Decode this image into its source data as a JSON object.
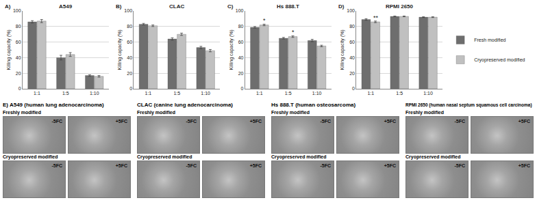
{
  "chart_data": [
    {
      "type": "bar",
      "label": "A)",
      "title": "A549",
      "categories": [
        "1:1",
        "1:5",
        "1:10"
      ],
      "y_label": "Killing capacity (%)",
      "ylim": [
        0,
        100
      ],
      "yticks": [
        0,
        20,
        40,
        60,
        80,
        100
      ],
      "grid": true,
      "series": [
        {
          "name": "Fresh modified",
          "color": "#6e6e6e",
          "values": [
            86,
            40,
            17
          ],
          "errors": [
            1.5,
            3,
            1
          ]
        },
        {
          "name": "Cryopreserved modified",
          "color": "#c0c0c0",
          "values": [
            87,
            44,
            16
          ],
          "errors": [
            2,
            2.5,
            1
          ]
        }
      ]
    },
    {
      "type": "bar",
      "label": "B)",
      "title": "CLAC",
      "categories": [
        "1:1",
        "1:5",
        "1:10"
      ],
      "y_label": "Killing capacity (%)",
      "ylim": [
        0,
        100
      ],
      "yticks": [
        0,
        20,
        40,
        60,
        80,
        100
      ],
      "grid": true,
      "series": [
        {
          "name": "Fresh modified",
          "color": "#6e6e6e",
          "values": [
            83,
            64,
            53
          ],
          "errors": [
            1,
            1.5,
            1.5
          ]
        },
        {
          "name": "Cryopreserved modified",
          "color": "#c0c0c0",
          "values": [
            81,
            70,
            49
          ],
          "errors": [
            1,
            1.5,
            1.5
          ]
        }
      ]
    },
    {
      "type": "bar",
      "label": "C)",
      "title": "Hs 888.T",
      "categories": [
        "1:1",
        "1:5",
        "1:10"
      ],
      "y_label": "Killing capacity (%)",
      "ylim": [
        0,
        100
      ],
      "yticks": [
        0,
        20,
        40,
        60,
        80,
        100
      ],
      "grid": true,
      "series": [
        {
          "name": "Fresh modified",
          "color": "#6e6e6e",
          "values": [
            79,
            65,
            62
          ],
          "errors": [
            1,
            1,
            1.5
          ]
        },
        {
          "name": "Cryopreserved modified",
          "color": "#c0c0c0",
          "values": [
            82,
            67,
            55
          ],
          "errors": [
            1,
            1,
            1
          ]
        }
      ],
      "annotations": [
        {
          "category": "1:1",
          "series": "Cryopreserved modified",
          "text": "*"
        },
        {
          "category": "1:5",
          "series": "Cryopreserved modified",
          "text": "*"
        }
      ]
    },
    {
      "type": "bar",
      "label": "D)",
      "title": "RPMI 2650",
      "categories": [
        "1:1",
        "1:5",
        "1:10"
      ],
      "y_label": "Killing capacity (%)",
      "ylim": [
        0,
        100
      ],
      "yticks": [
        0,
        20,
        40,
        60,
        80,
        100
      ],
      "grid": true,
      "legend": "right",
      "series": [
        {
          "name": "Fresh modified",
          "color": "#6e6e6e",
          "values": [
            89,
            93,
            92
          ],
          "errors": [
            1,
            0.5,
            0.5
          ]
        },
        {
          "name": "Cryopreserved modified",
          "color": "#c0c0c0",
          "values": [
            86,
            93,
            92
          ],
          "errors": [
            1,
            0.5,
            0.5
          ]
        }
      ],
      "annotations": [
        {
          "category": "1:1",
          "series": "Cryopreserved modified",
          "text": "**"
        }
      ]
    }
  ],
  "panel_e": {
    "label": "E)",
    "groups": [
      {
        "title": "A549 (human lung adenocarcinoma)",
        "rows": [
          {
            "label": "Freshly modified",
            "images": [
              "-5FC",
              "+5FC"
            ]
          },
          {
            "label": "Cryopreserved modified",
            "images": [
              "-5FC",
              "+5FC"
            ]
          }
        ]
      },
      {
        "title": "CLAC (canine lung adenocarcinoma)",
        "rows": [
          {
            "label": "Freshly modified",
            "images": [
              "-5FC",
              "+5FC"
            ]
          },
          {
            "label": "Cryopreserved modified",
            "images": [
              "-5FC",
              "+5FC"
            ]
          }
        ]
      },
      {
        "title": "Hs 888.T (human osteosarcoma)",
        "rows": [
          {
            "label": "Freshly modified",
            "images": [
              "-5FC",
              "+5FC"
            ]
          },
          {
            "label": "Cryopreserved modified",
            "images": [
              "-5FC",
              "+5FC"
            ]
          }
        ]
      },
      {
        "title": "RPMI 2650 (human nasal septum squamous cell carcinoma)",
        "rows": [
          {
            "label": "Freshly modified",
            "images": [
              "-5FC",
              "+5FC"
            ]
          },
          {
            "label": "Cryopreserved modified",
            "images": [
              "-5FC",
              "+5FC"
            ]
          }
        ]
      }
    ]
  }
}
